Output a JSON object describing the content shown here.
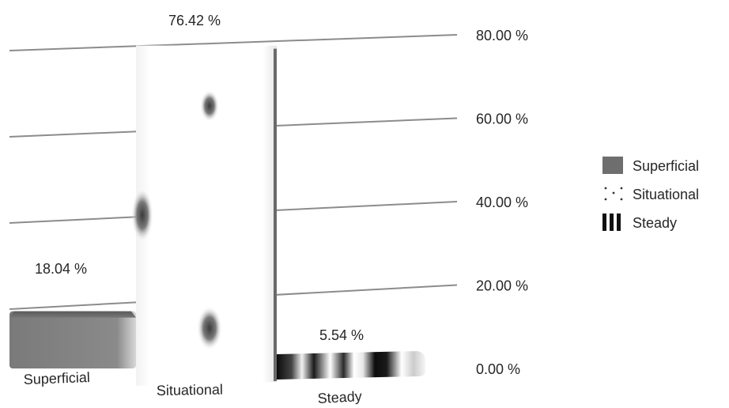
{
  "chart_data": {
    "type": "bar",
    "categories": [
      "Superficial",
      "Situational",
      "Steady"
    ],
    "series": [
      {
        "name": "Superficial",
        "category": "Superficial",
        "value": 18.04,
        "label": "18.04 %",
        "pattern": "solid",
        "color": "#6e6e6e"
      },
      {
        "name": "Situational",
        "category": "Situational",
        "value": 76.42,
        "label": "76.42 %",
        "pattern": "dotted",
        "color": "#ffffff"
      },
      {
        "name": "Steady",
        "category": "Steady",
        "value": 5.54,
        "label": "5.54 %",
        "pattern": "striped",
        "color": "#111111"
      }
    ],
    "yticks": [
      "0.00 %",
      "20.00 %",
      "40.00 %",
      "60.00 %",
      "80.00 %"
    ],
    "ylim": [
      0,
      80
    ],
    "grid": true,
    "legend_position": "right",
    "title": "",
    "xlabel": "",
    "ylabel": ""
  }
}
